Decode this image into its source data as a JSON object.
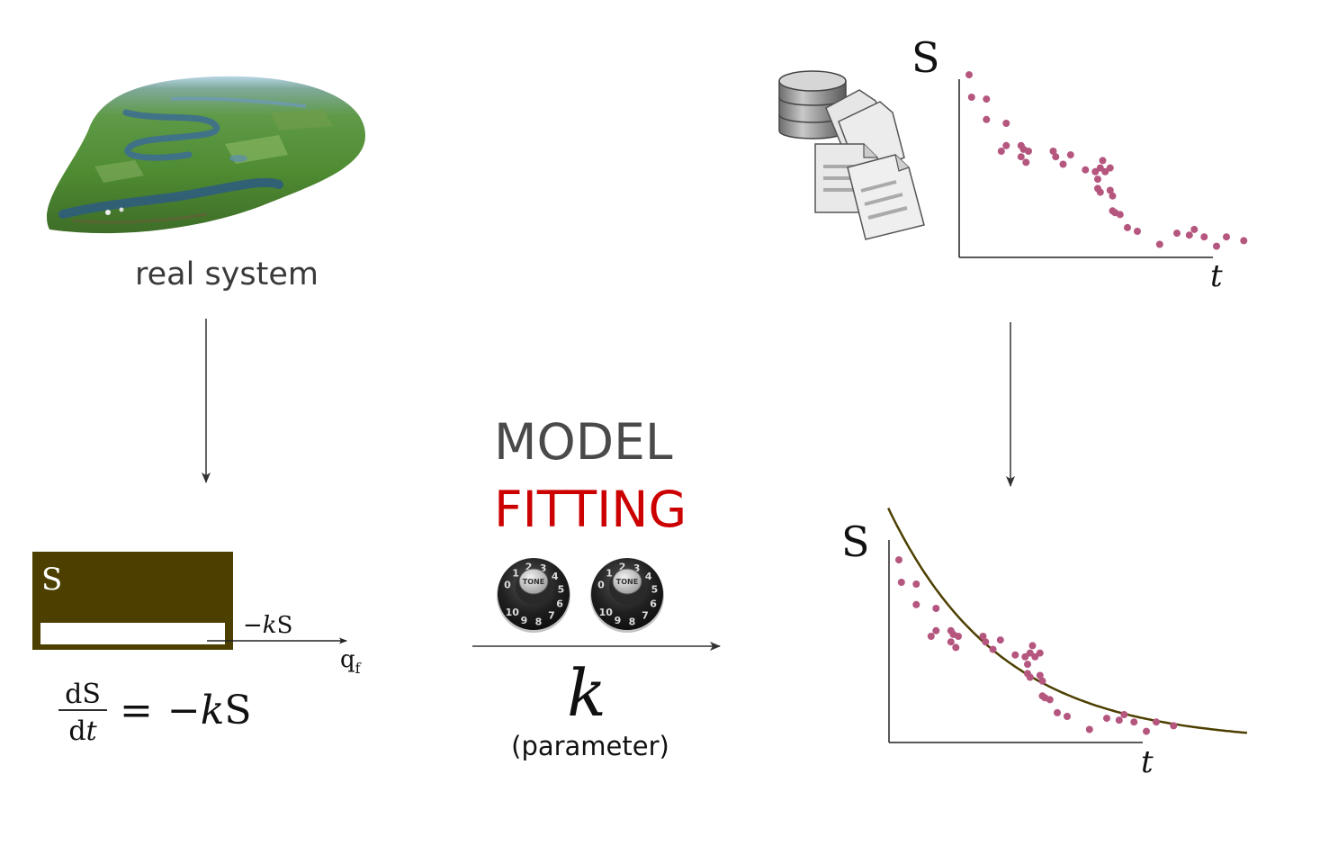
{
  "real_system": {
    "label": "real system"
  },
  "model_box": {
    "state_label": "S",
    "flow_label": "−kS",
    "flow_label_parts": {
      "sign": "−",
      "k": "k",
      "S": "S"
    },
    "outflow_label": "q",
    "outflow_subscript": "f",
    "equation": {
      "numerator": "dS",
      "denominator_d": "d",
      "denominator_t": "t",
      "rhs_eq": "=",
      "rhs_minus": "−",
      "rhs_k": "k",
      "rhs_S": "S"
    }
  },
  "center": {
    "line1": "MODEL",
    "line2": "FITTING",
    "knob_label": "TONE",
    "knob_numbers": [
      "0",
      "1",
      "2",
      "3",
      "4",
      "5",
      "6",
      "7",
      "8",
      "9",
      "10"
    ],
    "parameter_symbol": "k",
    "parameter_caption": "(parameter)"
  },
  "colors": {
    "gray_text": "#4a4a4a",
    "red": "#cc0000",
    "olive": "#4d3f00",
    "dots": "#b5567f",
    "axis": "#222222"
  },
  "chart_data": [
    {
      "type": "scatter",
      "title": "",
      "ylabel": "S",
      "xlabel": "t",
      "grid": false,
      "series": [
        {
          "x": [
            0.04,
            0.05,
            0.11,
            0.11,
            0.19,
            0.19,
            0.17,
            0.25,
            0.25,
            0.27,
            0.28,
            0.26,
            0.38,
            0.39,
            0.42,
            0.45,
            0.51,
            0.55,
            0.56,
            0.56,
            0.57,
            0.57,
            0.58,
            0.59,
            0.61,
            0.61,
            0.62,
            0.62,
            0.63,
            0.65,
            0.68,
            0.72,
            0.81,
            0.88,
            0.93,
            0.95,
            0.99,
            1.04,
            1.08,
            1.15
          ],
          "y": [
            0.98,
            0.86,
            0.85,
            0.74,
            0.72,
            0.6,
            0.57,
            0.6,
            0.54,
            0.51,
            0.57,
            0.58,
            0.57,
            0.54,
            0.5,
            0.55,
            0.47,
            0.46,
            0.42,
            0.37,
            0.35,
            0.48,
            0.52,
            0.46,
            0.48,
            0.36,
            0.33,
            0.25,
            0.24,
            0.23,
            0.16,
            0.14,
            0.07,
            0.13,
            0.12,
            0.15,
            0.11,
            0.06,
            0.11,
            0.09
          ]
        }
      ]
    },
    {
      "type": "scatter",
      "title": "",
      "ylabel": "S",
      "xlabel": "t",
      "grid": false,
      "series": [
        {
          "x": [
            0.04,
            0.05,
            0.11,
            0.11,
            0.19,
            0.19,
            0.17,
            0.25,
            0.25,
            0.27,
            0.28,
            0.26,
            0.38,
            0.39,
            0.42,
            0.45,
            0.51,
            0.55,
            0.56,
            0.56,
            0.57,
            0.57,
            0.58,
            0.59,
            0.61,
            0.61,
            0.62,
            0.62,
            0.63,
            0.65,
            0.68,
            0.72,
            0.81,
            0.88,
            0.93,
            0.95,
            0.99,
            1.04,
            1.08,
            1.15
          ],
          "y": [
            0.98,
            0.86,
            0.85,
            0.74,
            0.72,
            0.6,
            0.57,
            0.6,
            0.54,
            0.51,
            0.57,
            0.58,
            0.57,
            0.54,
            0.5,
            0.55,
            0.47,
            0.46,
            0.42,
            0.37,
            0.35,
            0.48,
            0.52,
            0.46,
            0.48,
            0.36,
            0.33,
            0.25,
            0.24,
            0.23,
            0.16,
            0.14,
            0.07,
            0.13,
            0.12,
            0.15,
            0.11,
            0.06,
            0.11,
            0.09
          ]
        }
      ],
      "fit_curve": {
        "form": "S = S0 * exp(-k t)",
        "S0": 1.25,
        "k": 2.2
      }
    }
  ]
}
